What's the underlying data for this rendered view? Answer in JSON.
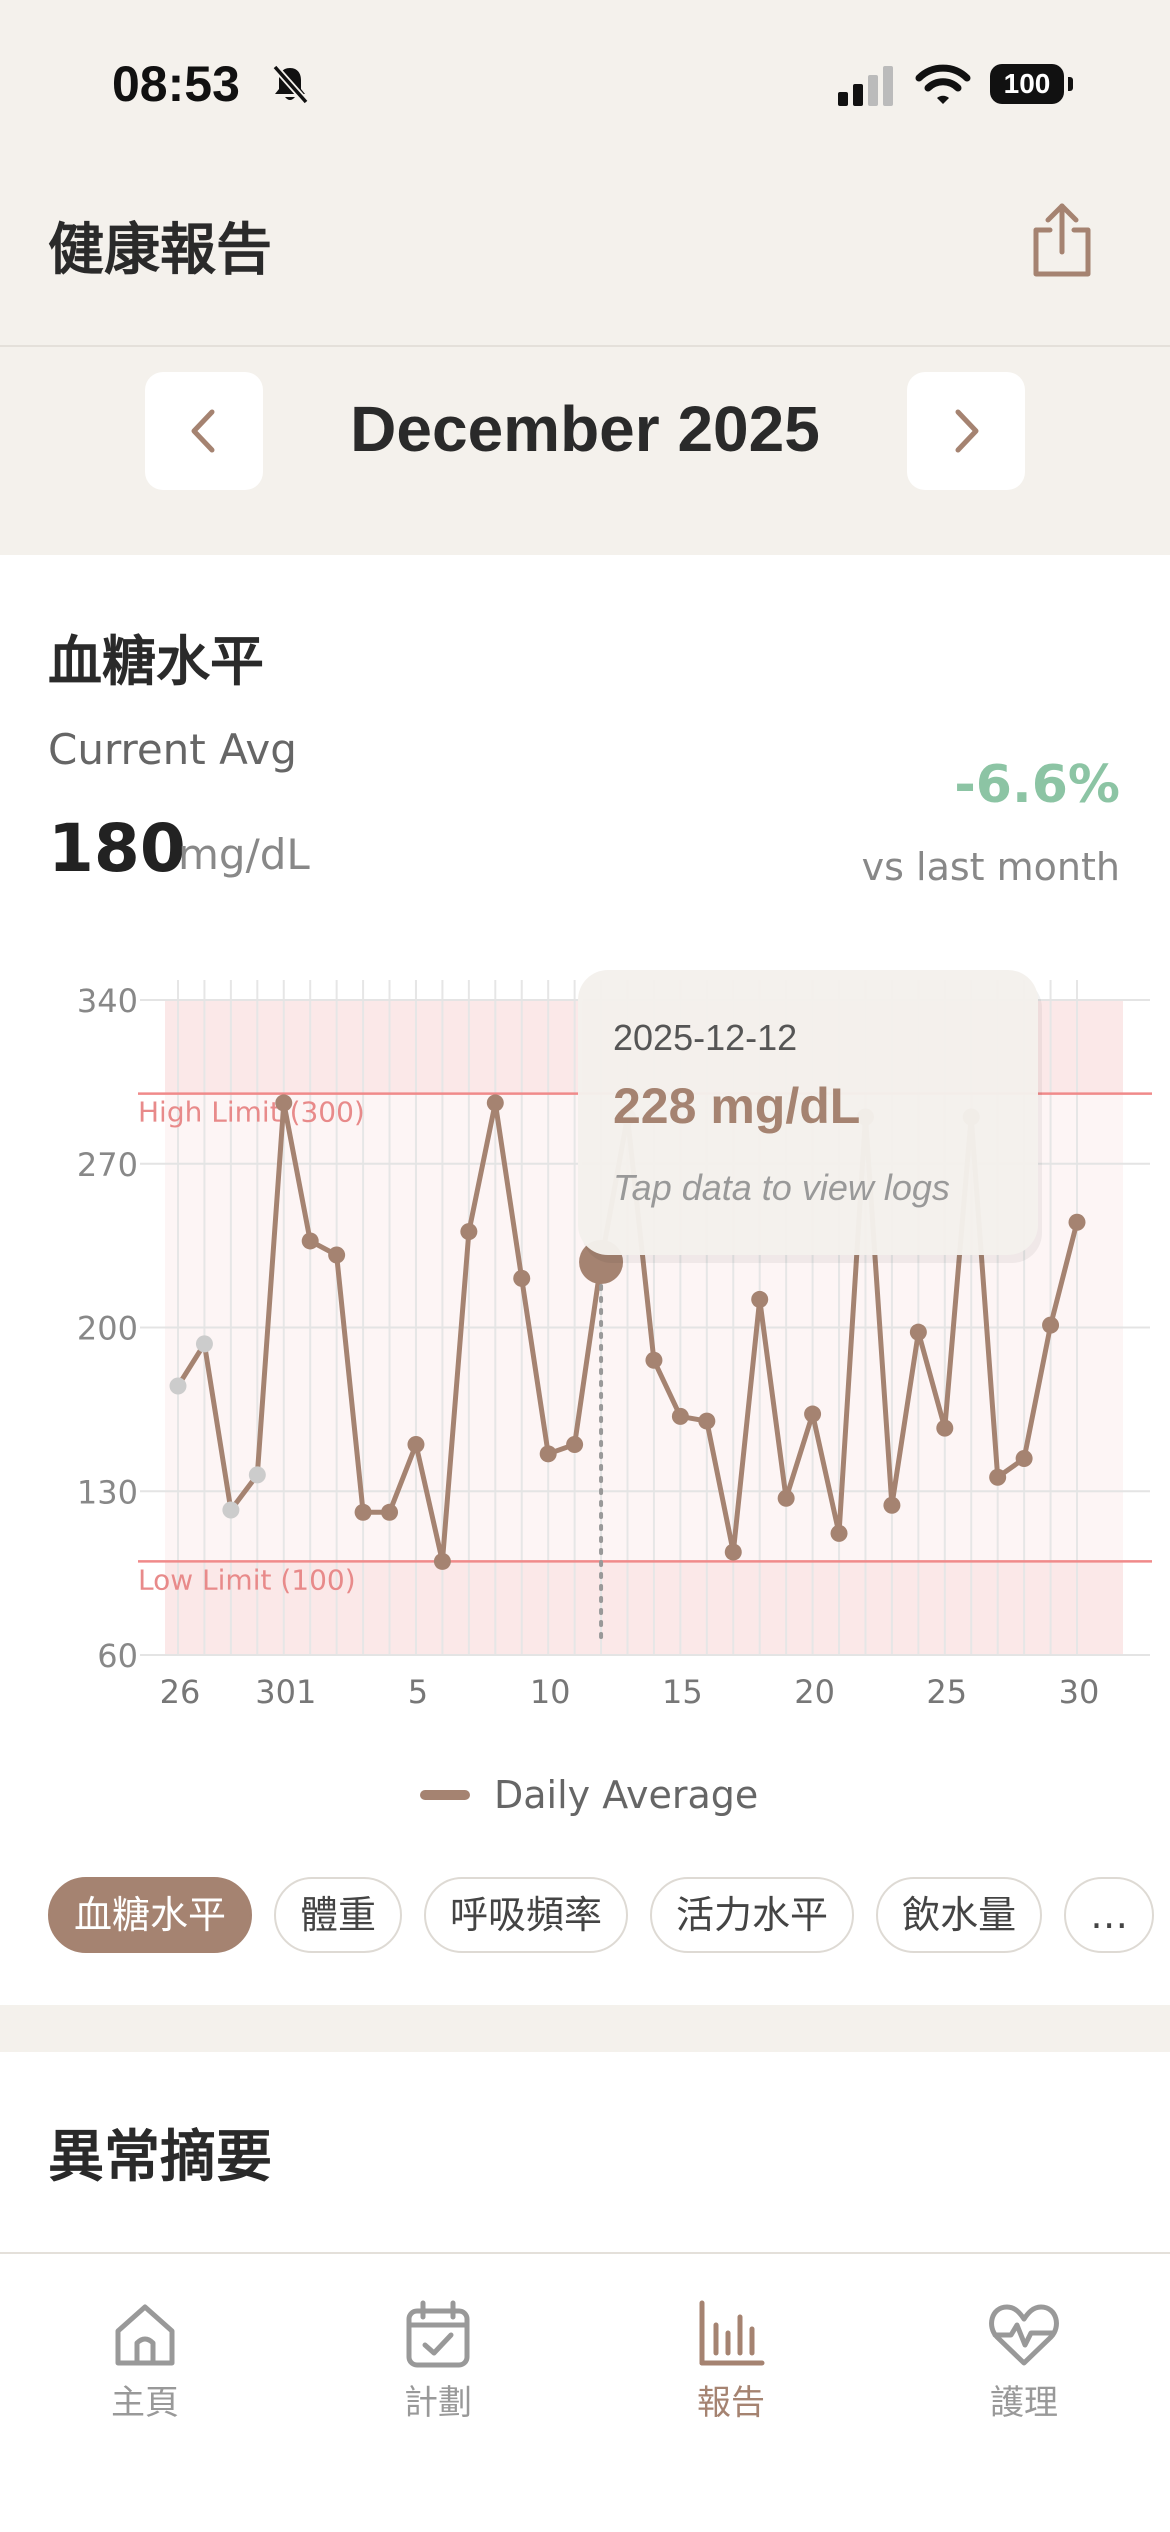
{
  "status_bar": {
    "time": "08:53",
    "battery": "100"
  },
  "header": {
    "title": "健康報告"
  },
  "month_nav": {
    "label": "December 2025"
  },
  "metric": {
    "title": "血糖水平",
    "current_avg_label": "Current Avg",
    "value": "180",
    "unit": "mg/dL",
    "change": "-6.6%",
    "change_label": "vs last month"
  },
  "chart_data": {
    "type": "line",
    "x_tick_labels": [
      "26",
      "301",
      "5",
      "10",
      "15",
      "20",
      "25",
      "30"
    ],
    "y_tick_labels": [
      "340",
      "270",
      "200",
      "130",
      "60"
    ],
    "ylim": [
      60,
      340
    ],
    "series": [
      {
        "name": "Daily Average",
        "points": [
          {
            "x": "2025-11-26",
            "y": 175,
            "faded": true
          },
          {
            "x": "2025-11-27",
            "y": 193,
            "faded": true
          },
          {
            "x": "2025-11-28",
            "y": 122,
            "faded": true
          },
          {
            "x": "2025-11-29",
            "y": 137,
            "faded": true
          },
          {
            "x": "2025-11-30",
            "y": 296
          },
          {
            "x": "2025-12-01",
            "y": 237
          },
          {
            "x": "2025-12-02",
            "y": 231
          },
          {
            "x": "2025-12-03",
            "y": 121
          },
          {
            "x": "2025-12-04",
            "y": 121
          },
          {
            "x": "2025-12-05",
            "y": 150
          },
          {
            "x": "2025-12-06",
            "y": 100
          },
          {
            "x": "2025-12-07",
            "y": 241
          },
          {
            "x": "2025-12-08",
            "y": 296
          },
          {
            "x": "2025-12-09",
            "y": 221
          },
          {
            "x": "2025-12-10",
            "y": 146
          },
          {
            "x": "2025-12-11",
            "y": 150
          },
          {
            "x": "2025-12-12",
            "y": 228,
            "selected": true
          },
          {
            "x": "2025-12-13",
            "y": 290
          },
          {
            "x": "2025-12-14",
            "y": 186
          },
          {
            "x": "2025-12-15",
            "y": 162
          },
          {
            "x": "2025-12-16",
            "y": 160
          },
          {
            "x": "2025-12-17",
            "y": 104
          },
          {
            "x": "2025-12-18",
            "y": 212
          },
          {
            "x": "2025-12-19",
            "y": 127
          },
          {
            "x": "2025-12-20",
            "y": 163
          },
          {
            "x": "2025-12-21",
            "y": 112
          },
          {
            "x": "2025-12-22",
            "y": 290
          },
          {
            "x": "2025-12-23",
            "y": 124
          },
          {
            "x": "2025-12-24",
            "y": 198
          },
          {
            "x": "2025-12-25",
            "y": 157
          },
          {
            "x": "2025-12-26",
            "y": 290
          },
          {
            "x": "2025-12-27",
            "y": 136
          },
          {
            "x": "2025-12-28",
            "y": 144
          },
          {
            "x": "2025-12-29",
            "y": 201
          },
          {
            "x": "2025-12-30",
            "y": 245
          }
        ]
      }
    ],
    "high_limit": {
      "value": 300,
      "label": "High Limit (300)"
    },
    "low_limit": {
      "value": 100,
      "label": "Low Limit (100)"
    },
    "tooltip": {
      "date": "2025-12-12",
      "value": "228 mg/dL",
      "hint": "Tap data to view logs"
    },
    "legend": {
      "label": "Daily Average",
      "placement": "bottom-center"
    },
    "grid": true,
    "colors": {
      "line": "#a58371",
      "limit": "#f08a8a",
      "band": "#fbe8e8",
      "faded": "#cccccc"
    }
  },
  "chips": [
    "血糖水平",
    "體重",
    "呼吸頻率",
    "活力水平",
    "飲水量",
    "…"
  ],
  "section": {
    "title": "異常摘要"
  },
  "tabs": [
    {
      "label": "主頁",
      "icon": "home-icon"
    },
    {
      "label": "計劃",
      "icon": "calendar-icon"
    },
    {
      "label": "報告",
      "icon": "bar-chart-icon",
      "active": true
    },
    {
      "label": "護理",
      "icon": "heart-pulse-icon"
    }
  ],
  "colors": {
    "accent": "#a58371",
    "positive": "#8cc4a4",
    "background": "#f4f1ec"
  }
}
